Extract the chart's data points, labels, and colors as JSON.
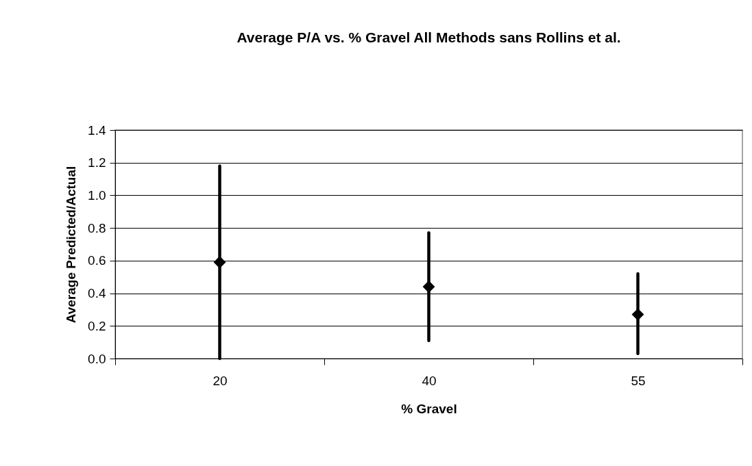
{
  "chart_data": {
    "type": "scatter",
    "title": "Average P/A vs. % Gravel All Methods sans Rollins et al.",
    "xlabel": "% Gravel",
    "ylabel": "Average Predicted/Actual",
    "categories": [
      "20",
      "40",
      "55"
    ],
    "values": [
      0.59,
      0.44,
      0.27
    ],
    "errors": [
      [
        0,
        1.18
      ],
      [
        0.11,
        0.77
      ],
      [
        0.03,
        0.52
      ]
    ],
    "color": "#000000",
    "marker": "diamond",
    "ylim": [
      0,
      1.4
    ],
    "yticks": [
      {
        "value": 0,
        "label": "0.0"
      },
      0.2,
      0.4,
      0.6,
      0.8,
      {
        "value": 1,
        "label": "1.0"
      },
      1.2,
      1.4
    ],
    "grid": "y"
  }
}
